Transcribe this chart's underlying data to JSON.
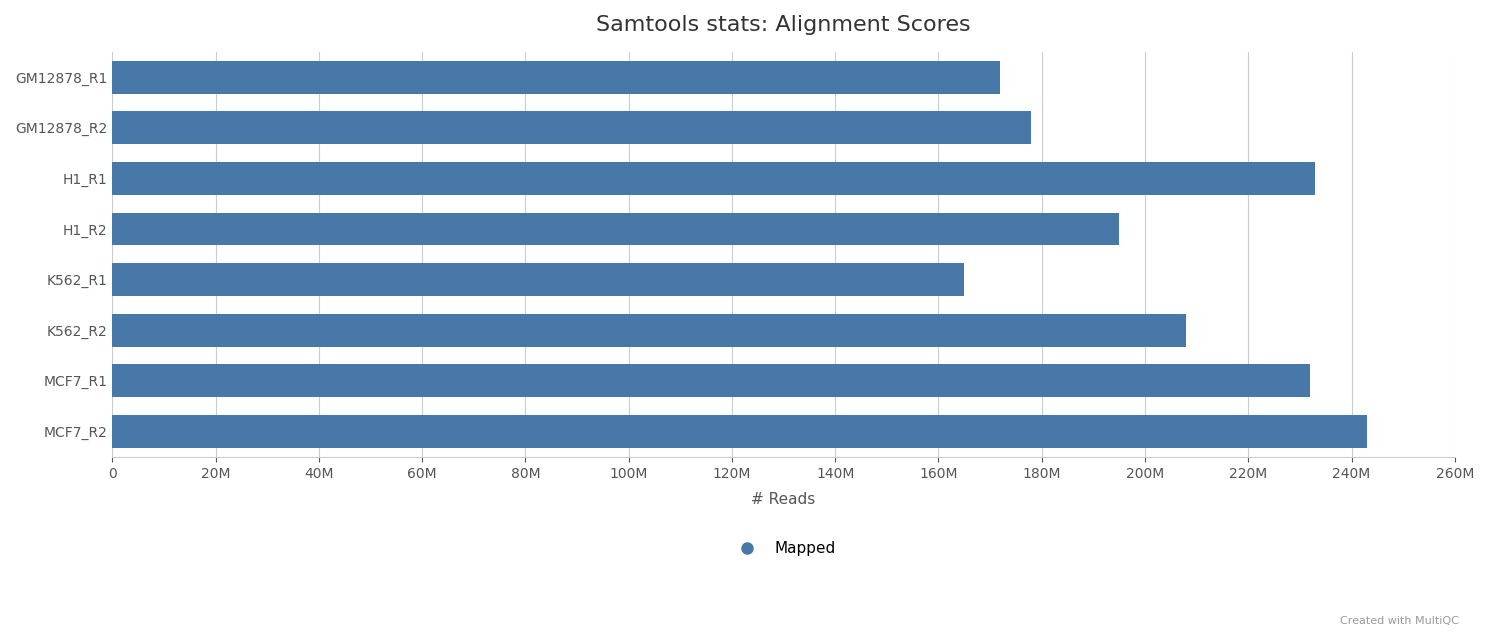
{
  "title": "Samtools stats: Alignment Scores",
  "categories": [
    "GM12878_R1",
    "GM12878_R2",
    "H1_R1",
    "H1_R2",
    "K562_R1",
    "K562_R2",
    "MCF7_R1",
    "MCF7_R2"
  ],
  "values": [
    172000000,
    178000000,
    233000000,
    195000000,
    165000000,
    208000000,
    232000000,
    243000000
  ],
  "bar_color": "#4878a8",
  "xlabel": "# Reads",
  "xlim": [
    0,
    260000000
  ],
  "xtick_step": 20000000,
  "legend_label": "Mapped",
  "legend_dot_color": "#4878a8",
  "background_color": "#ffffff",
  "grid_color": "#cccccc",
  "title_fontsize": 16,
  "label_fontsize": 11,
  "tick_fontsize": 10,
  "credit_text": "Created with MultiQC",
  "credit_fontsize": 8,
  "credit_color": "#999999"
}
